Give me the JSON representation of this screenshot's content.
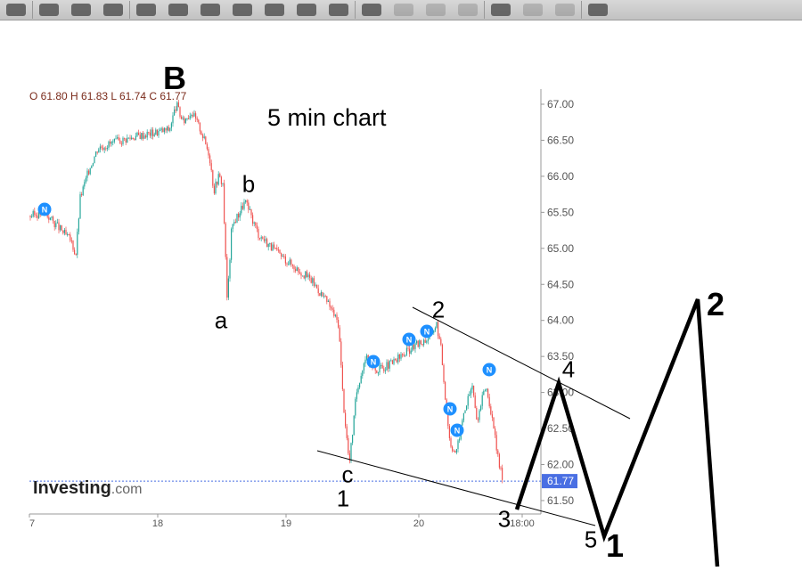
{
  "toolbar": {
    "icons": [
      "circle-tool",
      "arrow-tool",
      "pen-tool",
      "corner-tool",
      "fill-tool",
      "rotate-tool",
      "flip-tool",
      "rect-tool",
      "callout-tool",
      "star-tool",
      "gradient-tool",
      "undo-icon",
      "align-icon",
      "align-icon",
      "grid-icon",
      "layer-icon",
      "crop-icon",
      "line-icon",
      "transform-icon"
    ]
  },
  "ohlc": "O 61.80  H 61.83  L 61.74  C 61.77",
  "logo": {
    "name": "Investing",
    "suffix": ".com"
  },
  "chart_data": {
    "type": "candlestick",
    "title": "5 min chart",
    "yticks": [
      "67.00",
      "66.50",
      "66.00",
      "65.50",
      "65.00",
      "64.50",
      "64.00",
      "63.50",
      "63.00",
      "62.50",
      "62.00",
      "61.50"
    ],
    "ylim": [
      61.3,
      67.2
    ],
    "xticks": [
      "7",
      "18",
      "19",
      "20",
      "18:00"
    ],
    "last_price": "61.77",
    "price_path": [
      65.45,
      65.5,
      65.1,
      64.9,
      65.7,
      66.1,
      66.4,
      66.55,
      66.65,
      67.0,
      66.75,
      66.9,
      66.65,
      66.3,
      65.8,
      66.0,
      65.9,
      64.25,
      65.3,
      65.65,
      65.2,
      64.95,
      64.75,
      64.55,
      64.2,
      63.95,
      62.9,
      62.0,
      63.0,
      63.5,
      63.3,
      63.4,
      63.6,
      63.75,
      63.95,
      63.6,
      62.9,
      62.3,
      62.15,
      62.7,
      63.1,
      62.6,
      63.1,
      62.8,
      62.4,
      62.0,
      61.77
    ],
    "news_marker": "N",
    "colors": {
      "up": "#26a69a",
      "down": "#ef5350",
      "news": "#1e90ff",
      "price_tag": "#4a6fe3"
    },
    "annotations": {
      "B": "B",
      "b": "b",
      "a": "a",
      "c": "c",
      "one_small": "1",
      "two_small": "2",
      "four": "4",
      "three": "3",
      "five": "5",
      "one_big": "1",
      "two_big": "2"
    }
  }
}
